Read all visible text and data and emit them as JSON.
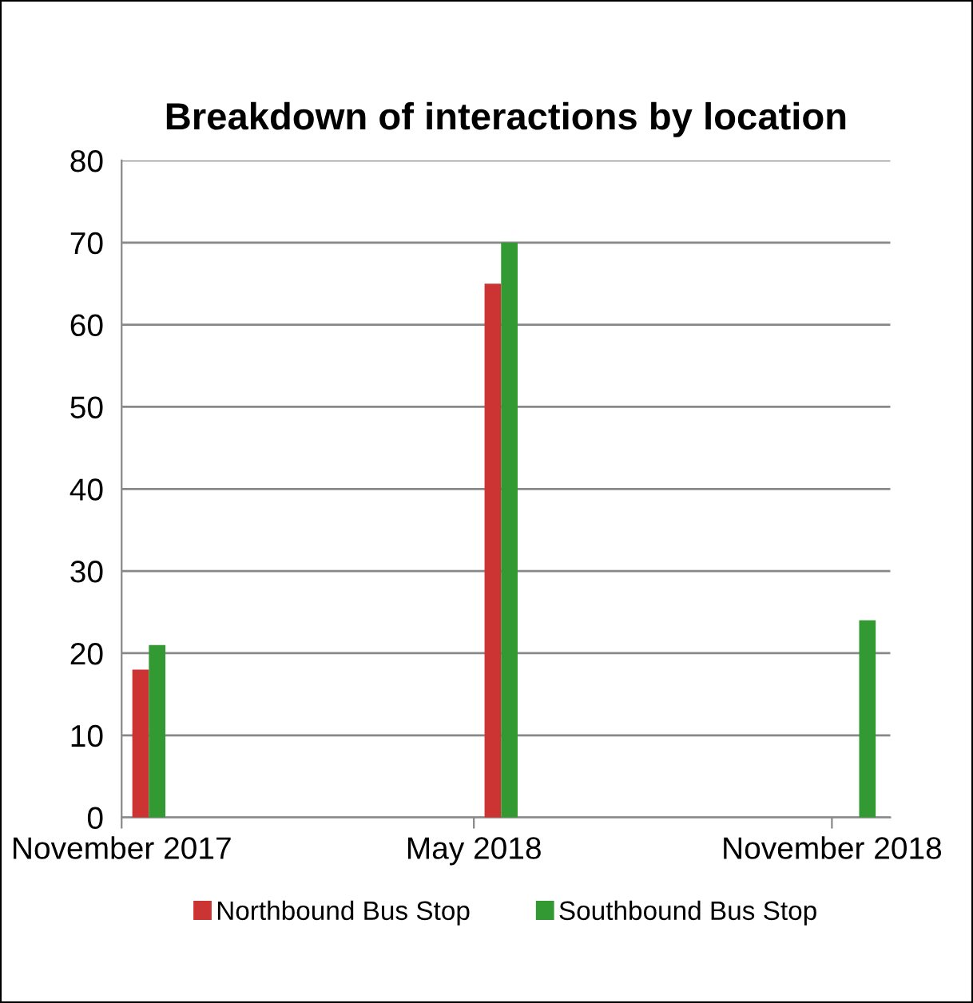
{
  "chart_data": {
    "type": "bar",
    "title": "Breakdown of interactions by location",
    "x": [
      "2017-11-15",
      "2018-05-15",
      "2018-11-15"
    ],
    "series": [
      {
        "name": "Northbound Bus Stop",
        "color": "#cc3333",
        "values": [
          18,
          65,
          null
        ]
      },
      {
        "name": "Southbound Bus Stop",
        "color": "#339933",
        "values": [
          21,
          70,
          24
        ]
      }
    ],
    "xlim": [
      "2017-11-01",
      "2018-12-01"
    ],
    "xticks": [
      {
        "value": "2017-11-01",
        "label": "November 2017"
      },
      {
        "value": "2018-05-01",
        "label": "May 2018"
      },
      {
        "value": "2018-11-01",
        "label": "November 2018"
      }
    ],
    "ylim": [
      0,
      80
    ],
    "yticks": [
      0,
      10,
      20,
      30,
      40,
      50,
      60,
      70,
      80
    ],
    "grid": "y",
    "legend": "bottom"
  }
}
